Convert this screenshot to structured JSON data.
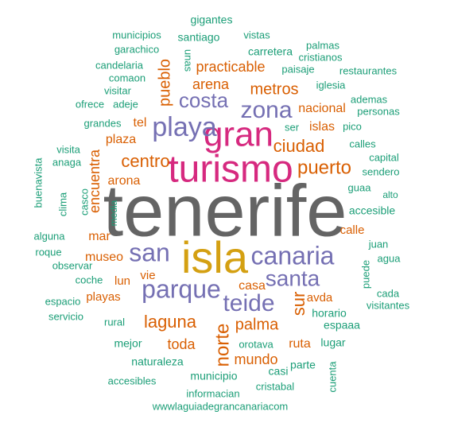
{
  "colors": {
    "background": "#ffffff",
    "dark_gray": "#646464",
    "magenta": "#d6297f",
    "gold": "#d4a012",
    "purple": "#7570b3",
    "orange": "#d95f02",
    "teal": "#1b9e77"
  },
  "words": [
    {
      "text": "tenerife",
      "color": "dark_gray"
    },
    {
      "text": "turismo",
      "color": "magenta"
    },
    {
      "text": "gran",
      "color": "magenta"
    },
    {
      "text": "isla",
      "color": "gold"
    },
    {
      "text": "playa",
      "color": "purple"
    },
    {
      "text": "zona",
      "color": "purple"
    },
    {
      "text": "costa",
      "color": "purple"
    },
    {
      "text": "canaria",
      "color": "purple"
    },
    {
      "text": "parque",
      "color": "purple"
    },
    {
      "text": "san",
      "color": "purple"
    },
    {
      "text": "santa",
      "color": "purple"
    },
    {
      "text": "teide",
      "color": "purple"
    },
    {
      "text": "puerto",
      "color": "orange"
    },
    {
      "text": "centro",
      "color": "orange"
    },
    {
      "text": "metros",
      "color": "orange"
    },
    {
      "text": "ciudad",
      "color": "orange"
    },
    {
      "text": "laguna",
      "color": "orange"
    },
    {
      "text": "palma",
      "color": "orange"
    },
    {
      "text": "norte",
      "color": "orange"
    },
    {
      "text": "sur",
      "color": "orange"
    },
    {
      "text": "pueblo",
      "color": "orange"
    },
    {
      "text": "practicable",
      "color": "orange"
    },
    {
      "text": "arena",
      "color": "orange"
    },
    {
      "text": "encuentra",
      "color": "orange"
    },
    {
      "text": "mundo",
      "color": "orange"
    },
    {
      "text": "toda",
      "color": "orange"
    },
    {
      "text": "nacional",
      "color": "orange"
    },
    {
      "text": "islas",
      "color": "orange"
    },
    {
      "text": "tel",
      "color": "orange"
    },
    {
      "text": "plaza",
      "color": "orange"
    },
    {
      "text": "arona",
      "color": "orange"
    },
    {
      "text": "museo",
      "color": "orange"
    },
    {
      "text": "mar",
      "color": "orange"
    },
    {
      "text": "calle",
      "color": "orange"
    },
    {
      "text": "playas",
      "color": "orange"
    },
    {
      "text": "casa",
      "color": "orange"
    },
    {
      "text": "lun",
      "color": "orange"
    },
    {
      "text": "vie",
      "color": "orange"
    },
    {
      "text": "ruta",
      "color": "orange"
    },
    {
      "text": "avda",
      "color": "orange"
    },
    {
      "text": "santiago",
      "color": "teal"
    },
    {
      "text": "gigantes",
      "color": "teal"
    },
    {
      "text": "municipios",
      "color": "teal"
    },
    {
      "text": "garachico",
      "color": "teal"
    },
    {
      "text": "candelaria",
      "color": "teal"
    },
    {
      "text": "comaon",
      "color": "teal"
    },
    {
      "text": "unas",
      "color": "teal"
    },
    {
      "text": "vistas",
      "color": "teal"
    },
    {
      "text": "carretera",
      "color": "teal"
    },
    {
      "text": "palmas",
      "color": "teal"
    },
    {
      "text": "cristianos",
      "color": "teal"
    },
    {
      "text": "paisaje",
      "color": "teal"
    },
    {
      "text": "restaurantes",
      "color": "teal"
    },
    {
      "text": "iglesia",
      "color": "teal"
    },
    {
      "text": "visitar",
      "color": "teal"
    },
    {
      "text": "ofrece",
      "color": "teal"
    },
    {
      "text": "adeje",
      "color": "teal"
    },
    {
      "text": "ademas",
      "color": "teal"
    },
    {
      "text": "personas",
      "color": "teal"
    },
    {
      "text": "grandes",
      "color": "teal"
    },
    {
      "text": "ser",
      "color": "teal"
    },
    {
      "text": "pico",
      "color": "teal"
    },
    {
      "text": "calles",
      "color": "teal"
    },
    {
      "text": "visita",
      "color": "teal"
    },
    {
      "text": "capital",
      "color": "teal"
    },
    {
      "text": "anaga",
      "color": "teal"
    },
    {
      "text": "buenavista",
      "color": "teal"
    },
    {
      "text": "sendero",
      "color": "teal"
    },
    {
      "text": "casco",
      "color": "teal"
    },
    {
      "text": "guaa",
      "color": "teal"
    },
    {
      "text": "clima",
      "color": "teal"
    },
    {
      "text": "media",
      "color": "teal"
    },
    {
      "text": "alto",
      "color": "teal"
    },
    {
      "text": "accesible",
      "color": "teal"
    },
    {
      "text": "alguna",
      "color": "teal"
    },
    {
      "text": "juan",
      "color": "teal"
    },
    {
      "text": "roque",
      "color": "teal"
    },
    {
      "text": "agua",
      "color": "teal"
    },
    {
      "text": "observar",
      "color": "teal"
    },
    {
      "text": "puede",
      "color": "teal"
    },
    {
      "text": "coche",
      "color": "teal"
    },
    {
      "text": "cada",
      "color": "teal"
    },
    {
      "text": "espacio",
      "color": "teal"
    },
    {
      "text": "visitantes",
      "color": "teal"
    },
    {
      "text": "servicio",
      "color": "teal"
    },
    {
      "text": "rural",
      "color": "teal"
    },
    {
      "text": "horario",
      "color": "teal"
    },
    {
      "text": "espaaa",
      "color": "teal"
    },
    {
      "text": "mejor",
      "color": "teal"
    },
    {
      "text": "orotava",
      "color": "teal"
    },
    {
      "text": "lugar",
      "color": "teal"
    },
    {
      "text": "naturaleza",
      "color": "teal"
    },
    {
      "text": "casi",
      "color": "teal"
    },
    {
      "text": "parte",
      "color": "teal"
    },
    {
      "text": "municipio",
      "color": "teal"
    },
    {
      "text": "accesibles",
      "color": "teal"
    },
    {
      "text": "cristabal",
      "color": "teal"
    },
    {
      "text": "cuenta",
      "color": "teal"
    },
    {
      "text": "informacian",
      "color": "teal"
    },
    {
      "text": "wwwlaguiadegrancanariacom",
      "color": "teal"
    }
  ]
}
